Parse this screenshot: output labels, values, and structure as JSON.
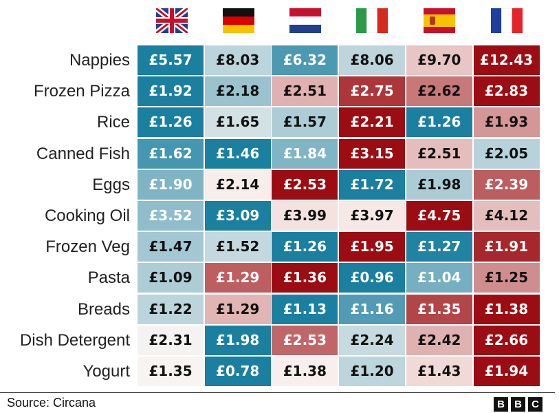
{
  "chart_data": {
    "type": "heatmap",
    "columns": [
      {
        "country": "UK",
        "flag_icon": "uk-flag-icon"
      },
      {
        "country": "Germany",
        "flag_icon": "germany-flag-icon"
      },
      {
        "country": "Netherlands",
        "flag_icon": "netherlands-flag-icon"
      },
      {
        "country": "Italy",
        "flag_icon": "italy-flag-icon"
      },
      {
        "country": "Spain",
        "flag_icon": "spain-flag-icon"
      },
      {
        "country": "France",
        "flag_icon": "france-flag-icon"
      }
    ],
    "rows": [
      "Nappies",
      "Frozen Pizza",
      "Rice",
      "Canned Fish",
      "Eggs",
      "Cooking Oil",
      "Frozen Veg",
      "Pasta",
      "Breads",
      "Dish Detergent",
      "Yogurt"
    ],
    "values": [
      [
        5.57,
        8.03,
        6.32,
        8.06,
        9.7,
        12.43
      ],
      [
        1.92,
        2.18,
        2.51,
        2.75,
        2.62,
        2.83
      ],
      [
        1.26,
        1.65,
        1.57,
        2.21,
        1.26,
        1.93
      ],
      [
        1.62,
        1.46,
        1.84,
        3.15,
        2.51,
        2.05
      ],
      [
        1.9,
        2.14,
        2.53,
        1.72,
        1.98,
        2.39
      ],
      [
        3.52,
        3.09,
        3.99,
        3.97,
        4.75,
        4.12
      ],
      [
        1.47,
        1.52,
        1.26,
        1.95,
        1.27,
        1.91
      ],
      [
        1.09,
        1.29,
        1.36,
        0.96,
        1.04,
        1.25
      ],
      [
        1.22,
        1.29,
        1.13,
        1.16,
        1.35,
        1.38
      ],
      [
        2.31,
        1.98,
        2.53,
        2.24,
        2.42,
        2.66
      ],
      [
        1.35,
        0.78,
        1.38,
        1.2,
        1.43,
        1.94
      ]
    ],
    "currency": "£",
    "color_scale": {
      "low": "#1b7fa0",
      "mid": "#fbf6f3",
      "high": "#9b0d12"
    }
  },
  "footer": {
    "source": "Source: Circana",
    "logo_letters": [
      "B",
      "B",
      "C"
    ]
  }
}
